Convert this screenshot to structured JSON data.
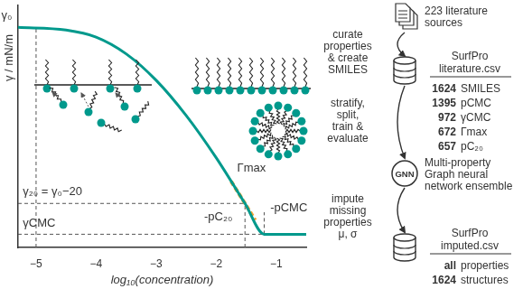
{
  "chart_data": {
    "type": "line",
    "x_label": "log₁₀(concentration)",
    "y_label": "γ / mN/m",
    "xlim": [
      -5.3,
      -0.5
    ],
    "xticks": [
      {
        "value": -5,
        "label": "−5"
      },
      {
        "value": -4,
        "label": "−4"
      },
      {
        "value": -3,
        "label": "−3"
      },
      {
        "value": -2,
        "label": "−2"
      },
      {
        "value": -1,
        "label": "−1"
      }
    ],
    "ylim": [
      45,
      72.5
    ],
    "tick_labels": "x",
    "grid": false,
    "series": [
      {
        "color": "#00998c",
        "line_style": "solid",
        "marker": "none",
        "x": [
          -5.3,
          -4.5,
          -4,
          -3.5,
          -3,
          -2.5,
          -2,
          -1.52,
          -1.2,
          -0.5
        ],
        "values": [
          70,
          69.7,
          68.9,
          67,
          64,
          60,
          55.2,
          50,
          46.5,
          46.5
        ]
      },
      {
        "color": "#f4a22d",
        "line_style": "dashed",
        "marker": "none",
        "x": [
          -1.75,
          -1.52,
          -1.35
        ],
        "values": [
          52.5,
          50,
          48.1
        ]
      }
    ],
    "reference_lines": [
      {
        "x": [
          -5,
          -5
        ],
        "y": [
          45,
          70
        ]
      },
      {
        "x": [
          -5.3,
          -1.52
        ],
        "y": [
          50,
          50
        ]
      },
      {
        "x": [
          -1.52,
          -1.52
        ],
        "y": [
          45,
          50
        ]
      },
      {
        "x": [
          -1.2,
          -1.2
        ],
        "y": [
          46.5,
          49
        ]
      },
      {
        "x": [
          -5.3,
          -1.2
        ],
        "y": [
          46.5,
          46.5
        ]
      }
    ],
    "annotations": [
      {
        "text": "γ₀",
        "x": -5.58,
        "y": 71.3
      },
      {
        "text": "γ₂₀ = γ₀−20",
        "x": -5.22,
        "y": 51.3
      },
      {
        "text": "γCMC",
        "x": -5.22,
        "y": 47.7
      },
      {
        "text": "-pC₂₀",
        "x": -2.2,
        "y": 48.4
      },
      {
        "text": "-pCMC",
        "x": -1.1,
        "y": 49.5
      },
      {
        "text": "Γmax",
        "x": -1.65,
        "y": 54
      }
    ]
  },
  "diagram": {
    "source": {
      "lines": [
        "223 literature",
        "sources"
      ]
    },
    "steps": [
      [
        "curate",
        "properties",
        "& create",
        "SMILES"
      ],
      [
        "stratify,",
        "split,",
        "train &",
        "evaluate"
      ],
      [
        "impute",
        "missing",
        "properties",
        "μ, σ"
      ]
    ],
    "literature_db": {
      "title": [
        "SurfPro",
        "literature.csv"
      ],
      "rows": [
        {
          "count": 1624,
          "label": "SMILES"
        },
        {
          "count": 1395,
          "label": "pCMC"
        },
        {
          "count": 972,
          "label": "γCMC"
        },
        {
          "count": 672,
          "label": "Γmax"
        },
        {
          "count": 657,
          "label": "pC₂₀"
        }
      ]
    },
    "model": {
      "badge": "GNN",
      "lines": [
        "Multi-property",
        "Graph neural",
        "network ensemble"
      ]
    },
    "imputed_db": {
      "title": [
        "SurfPro",
        "imputed.csv"
      ],
      "rows": [
        {
          "count": "all",
          "label": "properties"
        },
        {
          "count": 1624,
          "label": "structures"
        }
      ]
    }
  }
}
